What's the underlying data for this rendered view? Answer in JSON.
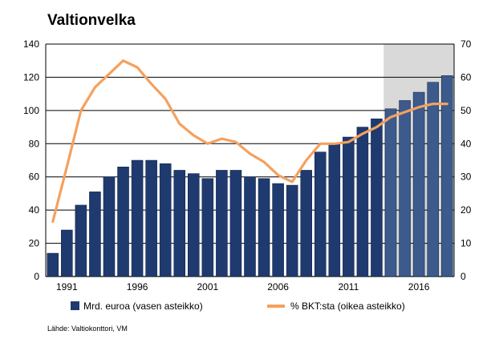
{
  "chart_data": {
    "type": "bar",
    "title": "Valtionvelka",
    "source": "Lähde: Valtiokonttori, VM",
    "categories": [
      1990,
      1991,
      1992,
      1993,
      1994,
      1995,
      1996,
      1997,
      1998,
      1999,
      2000,
      2001,
      2002,
      2003,
      2004,
      2005,
      2006,
      2007,
      2008,
      2009,
      2010,
      2011,
      2012,
      2013,
      2014,
      2015,
      2016,
      2017,
      2018
    ],
    "x_tick_labels": [
      "1991",
      "1996",
      "2001",
      "2006",
      "2011",
      "2016"
    ],
    "x_tick_values": [
      1991,
      1996,
      2001,
      2006,
      2011,
      2016
    ],
    "forecast_start": 2014,
    "forecast_shading_color": "#d9d9d9",
    "series": [
      {
        "name": "Mrd. euroa (vasen asteikko)",
        "type": "bar",
        "axis": "left",
        "color": "#1f3a6e",
        "forecast_color": "#3c5a8c",
        "values": [
          14,
          28,
          43,
          51,
          60,
          66,
          70,
          70,
          68,
          64,
          62,
          59,
          64,
          64,
          60,
          59,
          56,
          55,
          64,
          75,
          80,
          84,
          90,
          95,
          101,
          106,
          111,
          117,
          121
        ]
      },
      {
        "name": "% BKT:sta (oikea asteikko)",
        "type": "line",
        "axis": "right",
        "color": "#f4a15f",
        "values": [
          16.5,
          33,
          50,
          57,
          61,
          65,
          63,
          58,
          53.5,
          46,
          42.5,
          40,
          41.5,
          40.5,
          37,
          34.5,
          30.5,
          28.5,
          35,
          40,
          40,
          40.5,
          43,
          45,
          48,
          49.5,
          51,
          52,
          52
        ]
      }
    ],
    "left_axis": {
      "min": 0,
      "max": 140,
      "ticks": [
        0,
        20,
        40,
        60,
        80,
        100,
        120,
        140
      ]
    },
    "right_axis": {
      "min": 0,
      "max": 70,
      "ticks": [
        0,
        10,
        20,
        30,
        40,
        50,
        60,
        70
      ]
    },
    "grid": "horizontal",
    "legend_placement": "bottom"
  }
}
